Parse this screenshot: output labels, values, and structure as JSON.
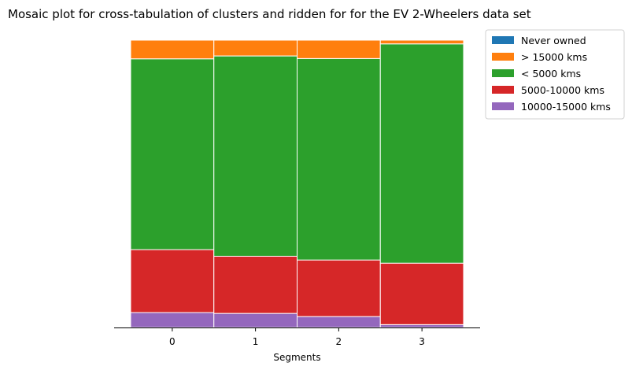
{
  "chart_data": {
    "type": "mosaic",
    "title": "Mosaic plot for cross-tabulation of clusters and ridden for for the EV 2-Wheelers data set",
    "xlabel": "Segments",
    "ylabel": "",
    "categories": [
      "0",
      "1",
      "2",
      "3"
    ],
    "category_widths": [
      0.25,
      0.25,
      0.25,
      0.25
    ],
    "stack_order_bottom_to_top": [
      "10000-15000 kms",
      "5000-10000 kms",
      "< 5000 kms",
      "> 15000 kms",
      "Never owned"
    ],
    "series": [
      {
        "name": "Never owned",
        "color": "#1f77b4",
        "values": [
          0.0,
          0.0,
          0.0,
          0.0
        ]
      },
      {
        "name": "> 15000 kms",
        "color": "#ff7f0e",
        "values": [
          0.065,
          0.055,
          0.064,
          0.013
        ]
      },
      {
        "name": "< 5000 kms",
        "color": "#2ca02c",
        "values": [
          0.664,
          0.697,
          0.701,
          0.763
        ]
      },
      {
        "name": "5000-10000 kms",
        "color": "#d62728",
        "values": [
          0.219,
          0.199,
          0.197,
          0.214
        ]
      },
      {
        "name": "10000-15000 kms",
        "color": "#9467bd",
        "values": [
          0.052,
          0.049,
          0.038,
          0.01
        ]
      }
    ],
    "ylim": [
      0,
      1
    ],
    "legend": "outside-top-right",
    "grid": false
  }
}
